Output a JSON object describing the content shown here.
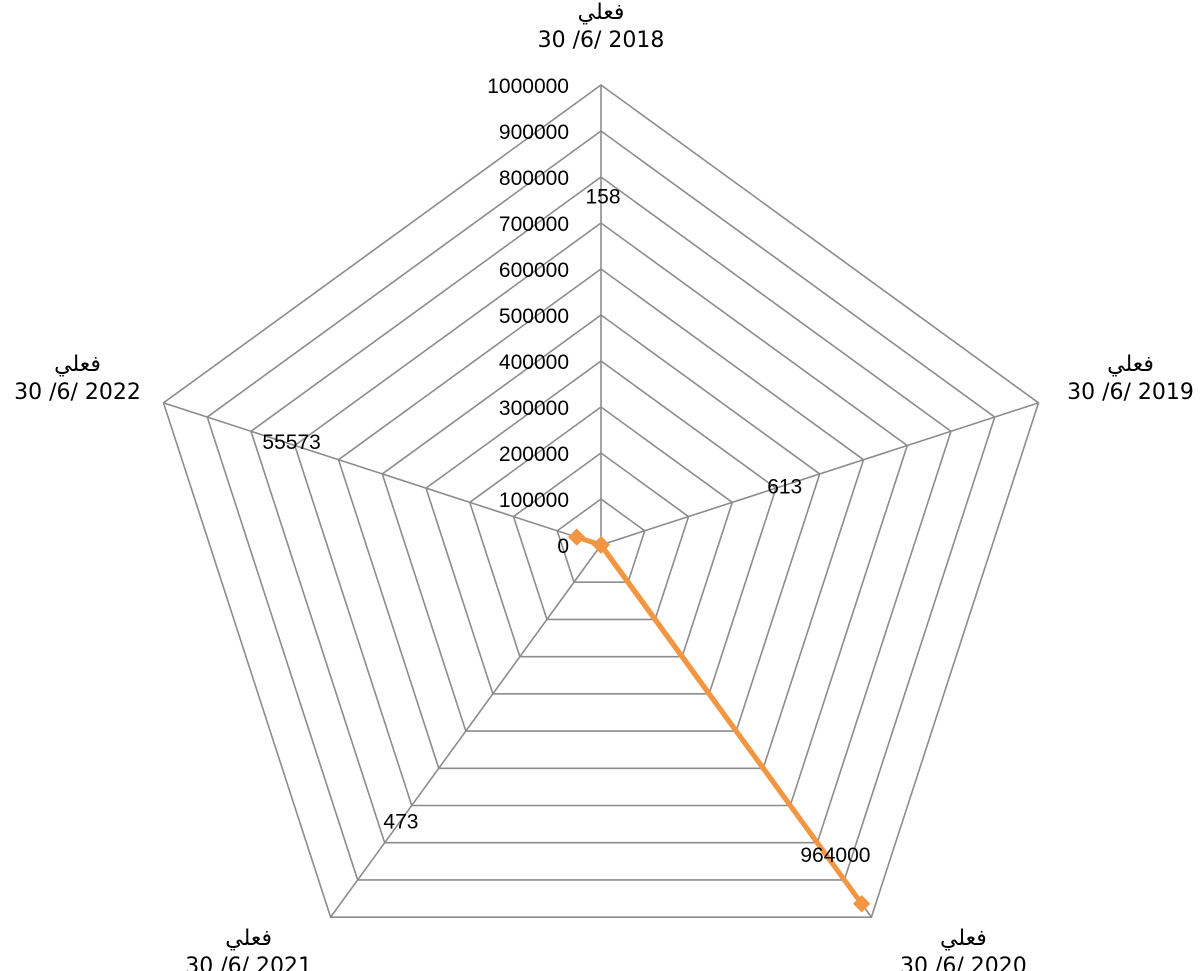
{
  "chart_data": {
    "type": "radar",
    "title": "",
    "categories": [
      {
        "label": "فعلي",
        "date": "30 /6/ 2018"
      },
      {
        "label": "فعلي",
        "date": "30 /6/ 2019"
      },
      {
        "label": "فعلي",
        "date": "30 /6/ 2020"
      },
      {
        "label": "فعلي",
        "date": "30 /6/ 2021"
      },
      {
        "label": "فعلي",
        "date": "30 /6/ 2022"
      }
    ],
    "series": [
      {
        "values": [
          158,
          613,
          964000,
          473,
          55573
        ],
        "color": "#F39643",
        "marker": "diamond"
      }
    ],
    "data_labels": [
      "158",
      "613",
      "964000",
      "473",
      "55573"
    ],
    "radial_axis": {
      "min": 0,
      "max": 1000000,
      "step": 100000,
      "tick_labels": [
        "0",
        "100000",
        "200000",
        "300000",
        "400000",
        "500000",
        "600000",
        "700000",
        "800000",
        "900000",
        "1000000"
      ]
    },
    "grid": true,
    "grid_color": "#8C8C8C",
    "legend": "none"
  }
}
